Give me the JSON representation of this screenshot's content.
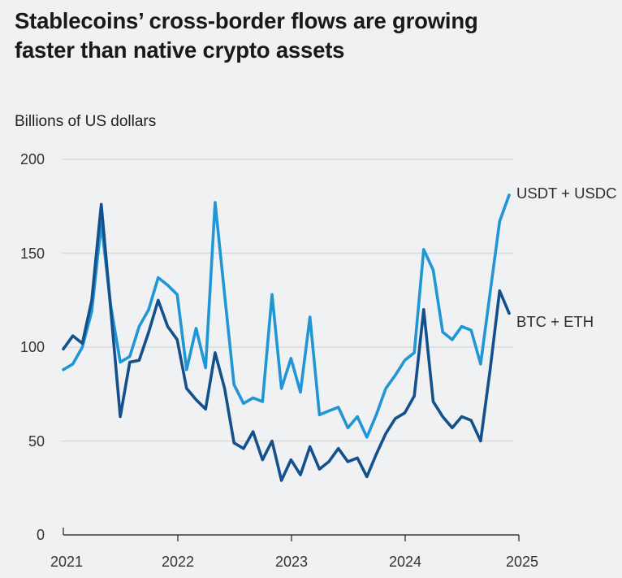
{
  "header": {
    "title": "Stablecoins’ cross-border flows are growing\nfaster than native crypto assets",
    "units_label": "Billions of US dollars"
  },
  "chart_data": {
    "type": "line",
    "title": "Stablecoins’ cross-border flows are growing faster than native crypto assets",
    "ylabel": "Billions of US dollars",
    "ylim": [
      0,
      200
    ],
    "y_tick_labels": [
      "200",
      "150",
      "100",
      "50",
      "0"
    ],
    "x_tick_labels": [
      "2021",
      "2022",
      "2023",
      "2024",
      "2025"
    ],
    "frequency": "monthly",
    "x_start": "2021-01",
    "x_end": "2024-12",
    "grid": "horizontal gridlines at 50,100,150,200",
    "legend_position": "labels at right end of lines",
    "background_color": "#eff1f2",
    "series": [
      {
        "name": "USDT + USDC",
        "color": "#2196d4",
        "values": [
          88,
          91,
          100,
          119,
          166,
          122,
          92,
          95,
          111,
          120,
          137,
          133,
          128,
          88,
          110,
          89,
          177,
          128,
          80,
          70,
          73,
          71,
          128,
          78,
          94,
          76,
          116,
          64,
          66,
          68,
          57,
          63,
          52,
          64,
          78,
          85,
          93,
          97,
          152,
          141,
          108,
          104,
          111,
          109,
          91,
          129,
          167,
          181
        ]
      },
      {
        "name": "BTC + ETH",
        "color": "#14508c",
        "values": [
          99,
          106,
          102,
          125,
          176,
          120,
          63,
          92,
          93,
          108,
          125,
          111,
          104,
          78,
          72,
          67,
          97,
          78,
          49,
          46,
          55,
          40,
          50,
          29,
          40,
          32,
          47,
          35,
          39,
          46,
          39,
          41,
          31,
          43,
          54,
          62,
          65,
          74,
          120,
          71,
          63,
          57,
          63,
          61,
          50,
          88,
          130,
          118
        ]
      }
    ]
  }
}
